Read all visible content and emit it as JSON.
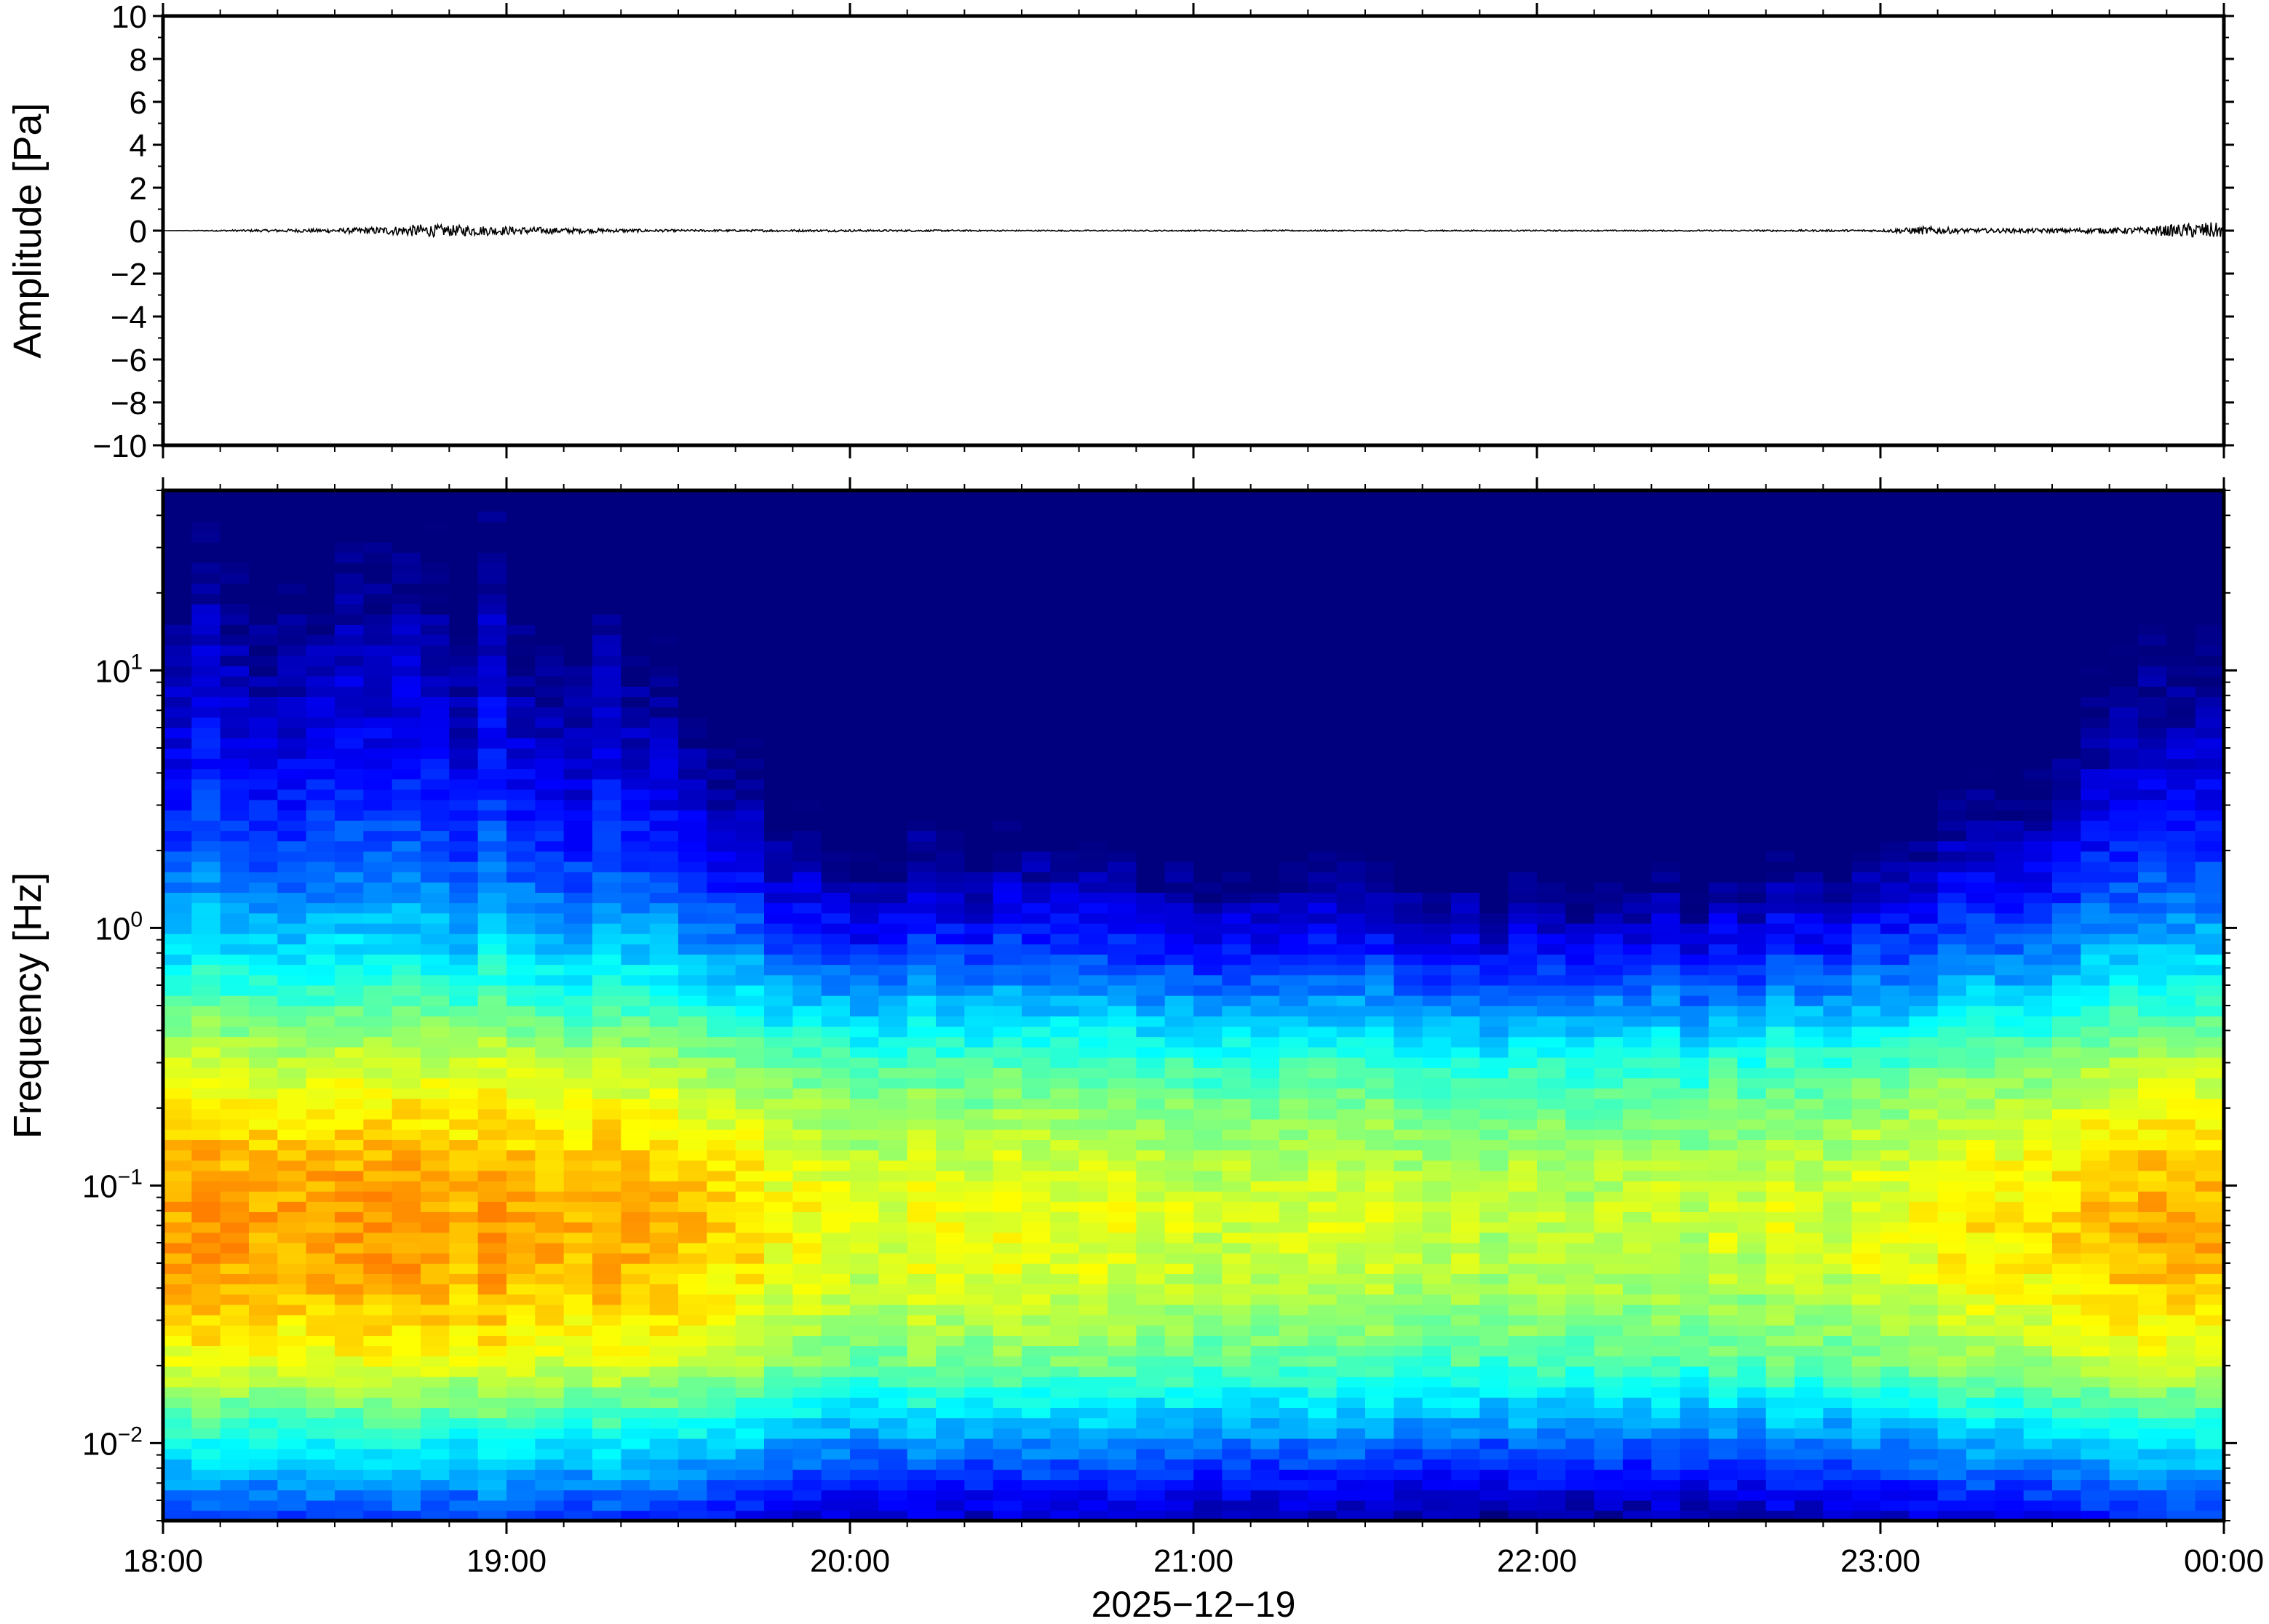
{
  "chart_data": [
    {
      "type": "line",
      "title": "",
      "xlabel": "",
      "ylabel": "Amplitude [Pa]",
      "ylim": [
        -10,
        10
      ],
      "yticks": [
        -10,
        -8,
        -6,
        -4,
        -2,
        0,
        2,
        4,
        6,
        8,
        10
      ],
      "ytick_labels": [
        "−10",
        "−8",
        "−6",
        "−4",
        "−2",
        "0",
        "2",
        "4",
        "6",
        "8",
        "10"
      ],
      "xlim": [
        "18:00",
        "00:00"
      ],
      "series": [
        {
          "x": [
            "18:00",
            "18:15",
            "18:30",
            "18:40",
            "18:45",
            "19:00",
            "19:15",
            "19:30",
            "20:00",
            "20:30",
            "21:00",
            "21:30",
            "22:00",
            "22:30",
            "23:00",
            "23:08",
            "23:15",
            "23:30",
            "23:45",
            "23:52",
            "23:58",
            "00:00"
          ],
          "values": [
            0.0,
            0.05,
            0.1,
            0.2,
            0.3,
            0.2,
            0.1,
            0.05,
            0.05,
            0.03,
            0.03,
            0.03,
            0.03,
            0.03,
            0.05,
            0.2,
            0.1,
            0.1,
            0.15,
            0.3,
            0.4,
            0.3
          ],
          "color": "#000000"
        }
      ]
    },
    {
      "type": "heatmap",
      "title": "",
      "xlabel": "2025−12−19",
      "ylabel": "Frequency [Hz]",
      "y_scale": "log",
      "ylim": [
        0.005,
        50
      ],
      "xlim": [
        "18:00",
        "00:00"
      ],
      "xticks": [
        "18:00",
        "19:00",
        "20:00",
        "21:00",
        "22:00",
        "23:00",
        "00:00"
      ],
      "yticks": [
        0.01,
        0.1,
        1,
        10
      ],
      "ytick_labels": [
        {
          "base": "10",
          "exp": "−2"
        },
        {
          "base": "10",
          "exp": "−1"
        },
        {
          "base": "10",
          "exp": "0"
        },
        {
          "base": "10",
          "exp": "1"
        }
      ],
      "colormap": [
        "#00007f",
        "#0000ff",
        "#007fff",
        "#00ffff",
        "#7fff7f",
        "#ffff00",
        "#ff7f00"
      ],
      "time_columns": [
        "18:00",
        "18:30",
        "19:00",
        "19:30",
        "20:00",
        "20:30",
        "21:00",
        "21:30",
        "22:00",
        "22:30",
        "23:00",
        "23:30",
        "23:52"
      ],
      "energy_0_to_1": [
        0.56,
        0.58,
        0.56,
        0.5,
        0.3,
        0.32,
        0.26,
        0.26,
        0.2,
        0.22,
        0.32,
        0.4,
        0.56
      ],
      "grid": false
    }
  ]
}
